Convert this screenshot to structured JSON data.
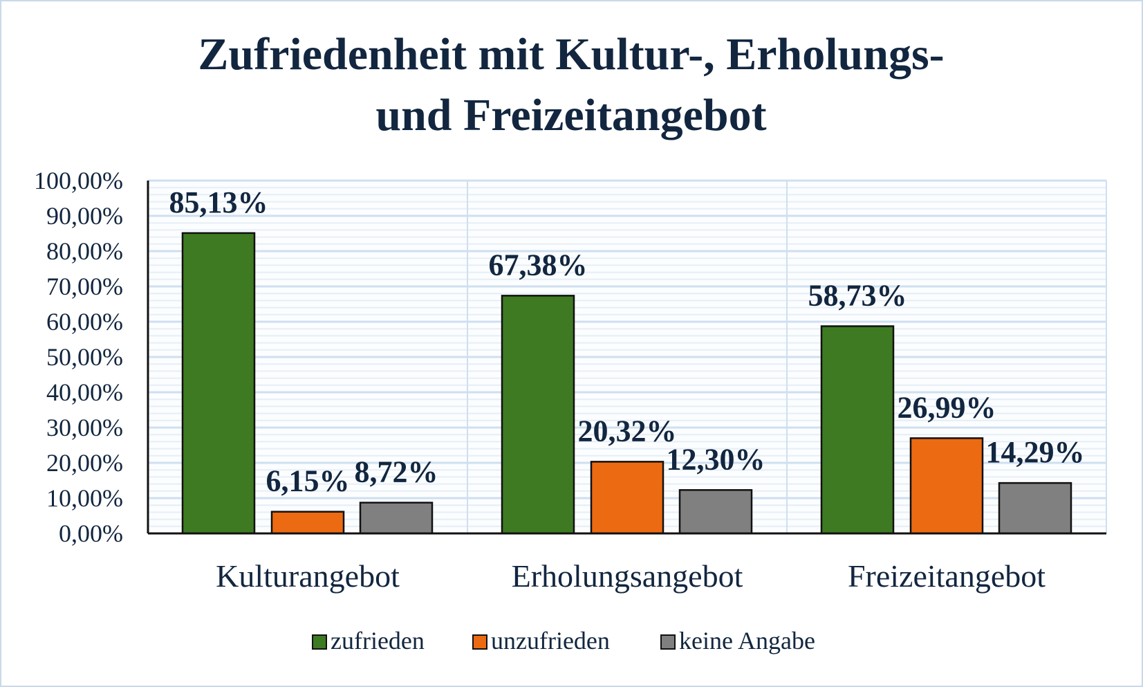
{
  "chart_data": {
    "type": "bar",
    "title_lines": [
      "Zufriedenheit mit Kultur-, Erholungs-",
      "und Freizeitangebot"
    ],
    "categories": [
      "Kulturangebot",
      "Erholungsangebot",
      "Freizeitangebot"
    ],
    "series": [
      {
        "name": "zufrieden",
        "color": "#3d7a22",
        "values": [
          85.13,
          67.38,
          58.73
        ],
        "labels": [
          "85,13%",
          "67,38%",
          "58,73%"
        ]
      },
      {
        "name": "unzufrieden",
        "color": "#ec6a12",
        "values": [
          6.15,
          20.32,
          26.99
        ],
        "labels": [
          "6,15%",
          "20,32%",
          "26,99%"
        ]
      },
      {
        "name": "keine Angabe",
        "color": "#808080",
        "values": [
          8.72,
          12.3,
          14.29
        ],
        "labels": [
          "8,72%",
          "12,30%",
          "14,29%"
        ]
      }
    ],
    "yticks": [
      "0,00%",
      "10,00%",
      "20,00%",
      "30,00%",
      "40,00%",
      "50,00%",
      "60,00%",
      "70,00%",
      "80,00%",
      "90,00%",
      "100,00%"
    ],
    "ylim": [
      0,
      100
    ],
    "xlabel": "",
    "ylabel": "",
    "grid": true,
    "legend": "bottom"
  }
}
